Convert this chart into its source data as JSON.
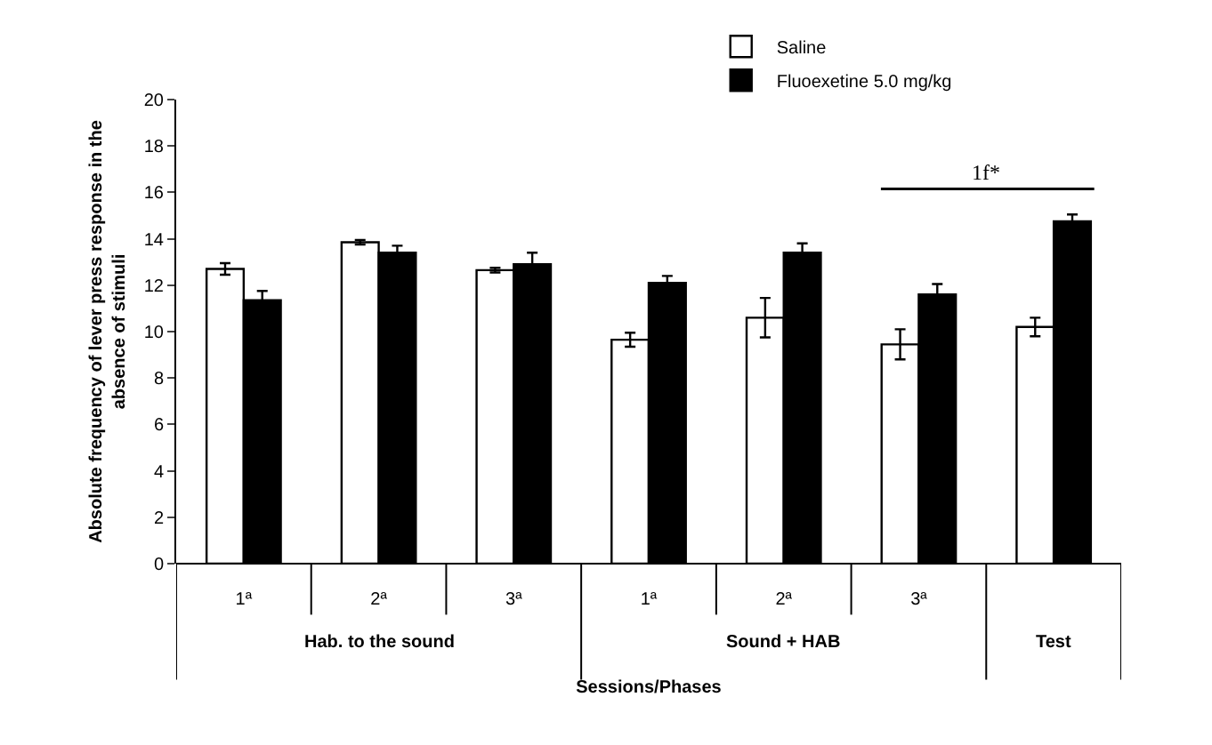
{
  "chart_data": {
    "type": "bar",
    "xlabel": "Sessions/Phases",
    "ylabel": "Absolute frequency of lever press response in the absence of stimuli",
    "categories": [
      "1ª",
      "2ª",
      "3ª",
      "1ª",
      "2ª",
      "3ª",
      null
    ],
    "series": [
      {
        "name": "Saline",
        "color": "#ffffff",
        "values": [
          12.7,
          13.85,
          12.65,
          9.65,
          10.6,
          9.45,
          10.2
        ],
        "errors": [
          0.25,
          0.1,
          0.1,
          0.3,
          0.85,
          0.65,
          0.4
        ]
      },
      {
        "name": "Fluoexetine 5.0 mg/kg",
        "color": "#000000",
        "values": [
          11.35,
          13.4,
          12.9,
          12.1,
          13.4,
          11.6,
          14.75
        ],
        "errors": [
          0.4,
          0.3,
          0.5,
          0.3,
          0.4,
          0.45,
          0.3
        ]
      }
    ],
    "ylim": [
      0,
      20
    ],
    "yticks": [
      0,
      2,
      4,
      6,
      8,
      10,
      12,
      14,
      16,
      18,
      20
    ],
    "legend": "top right",
    "annotations": [
      "1f*",
      "Hab. to the sound",
      "Sound + HAB",
      "Test"
    ]
  }
}
